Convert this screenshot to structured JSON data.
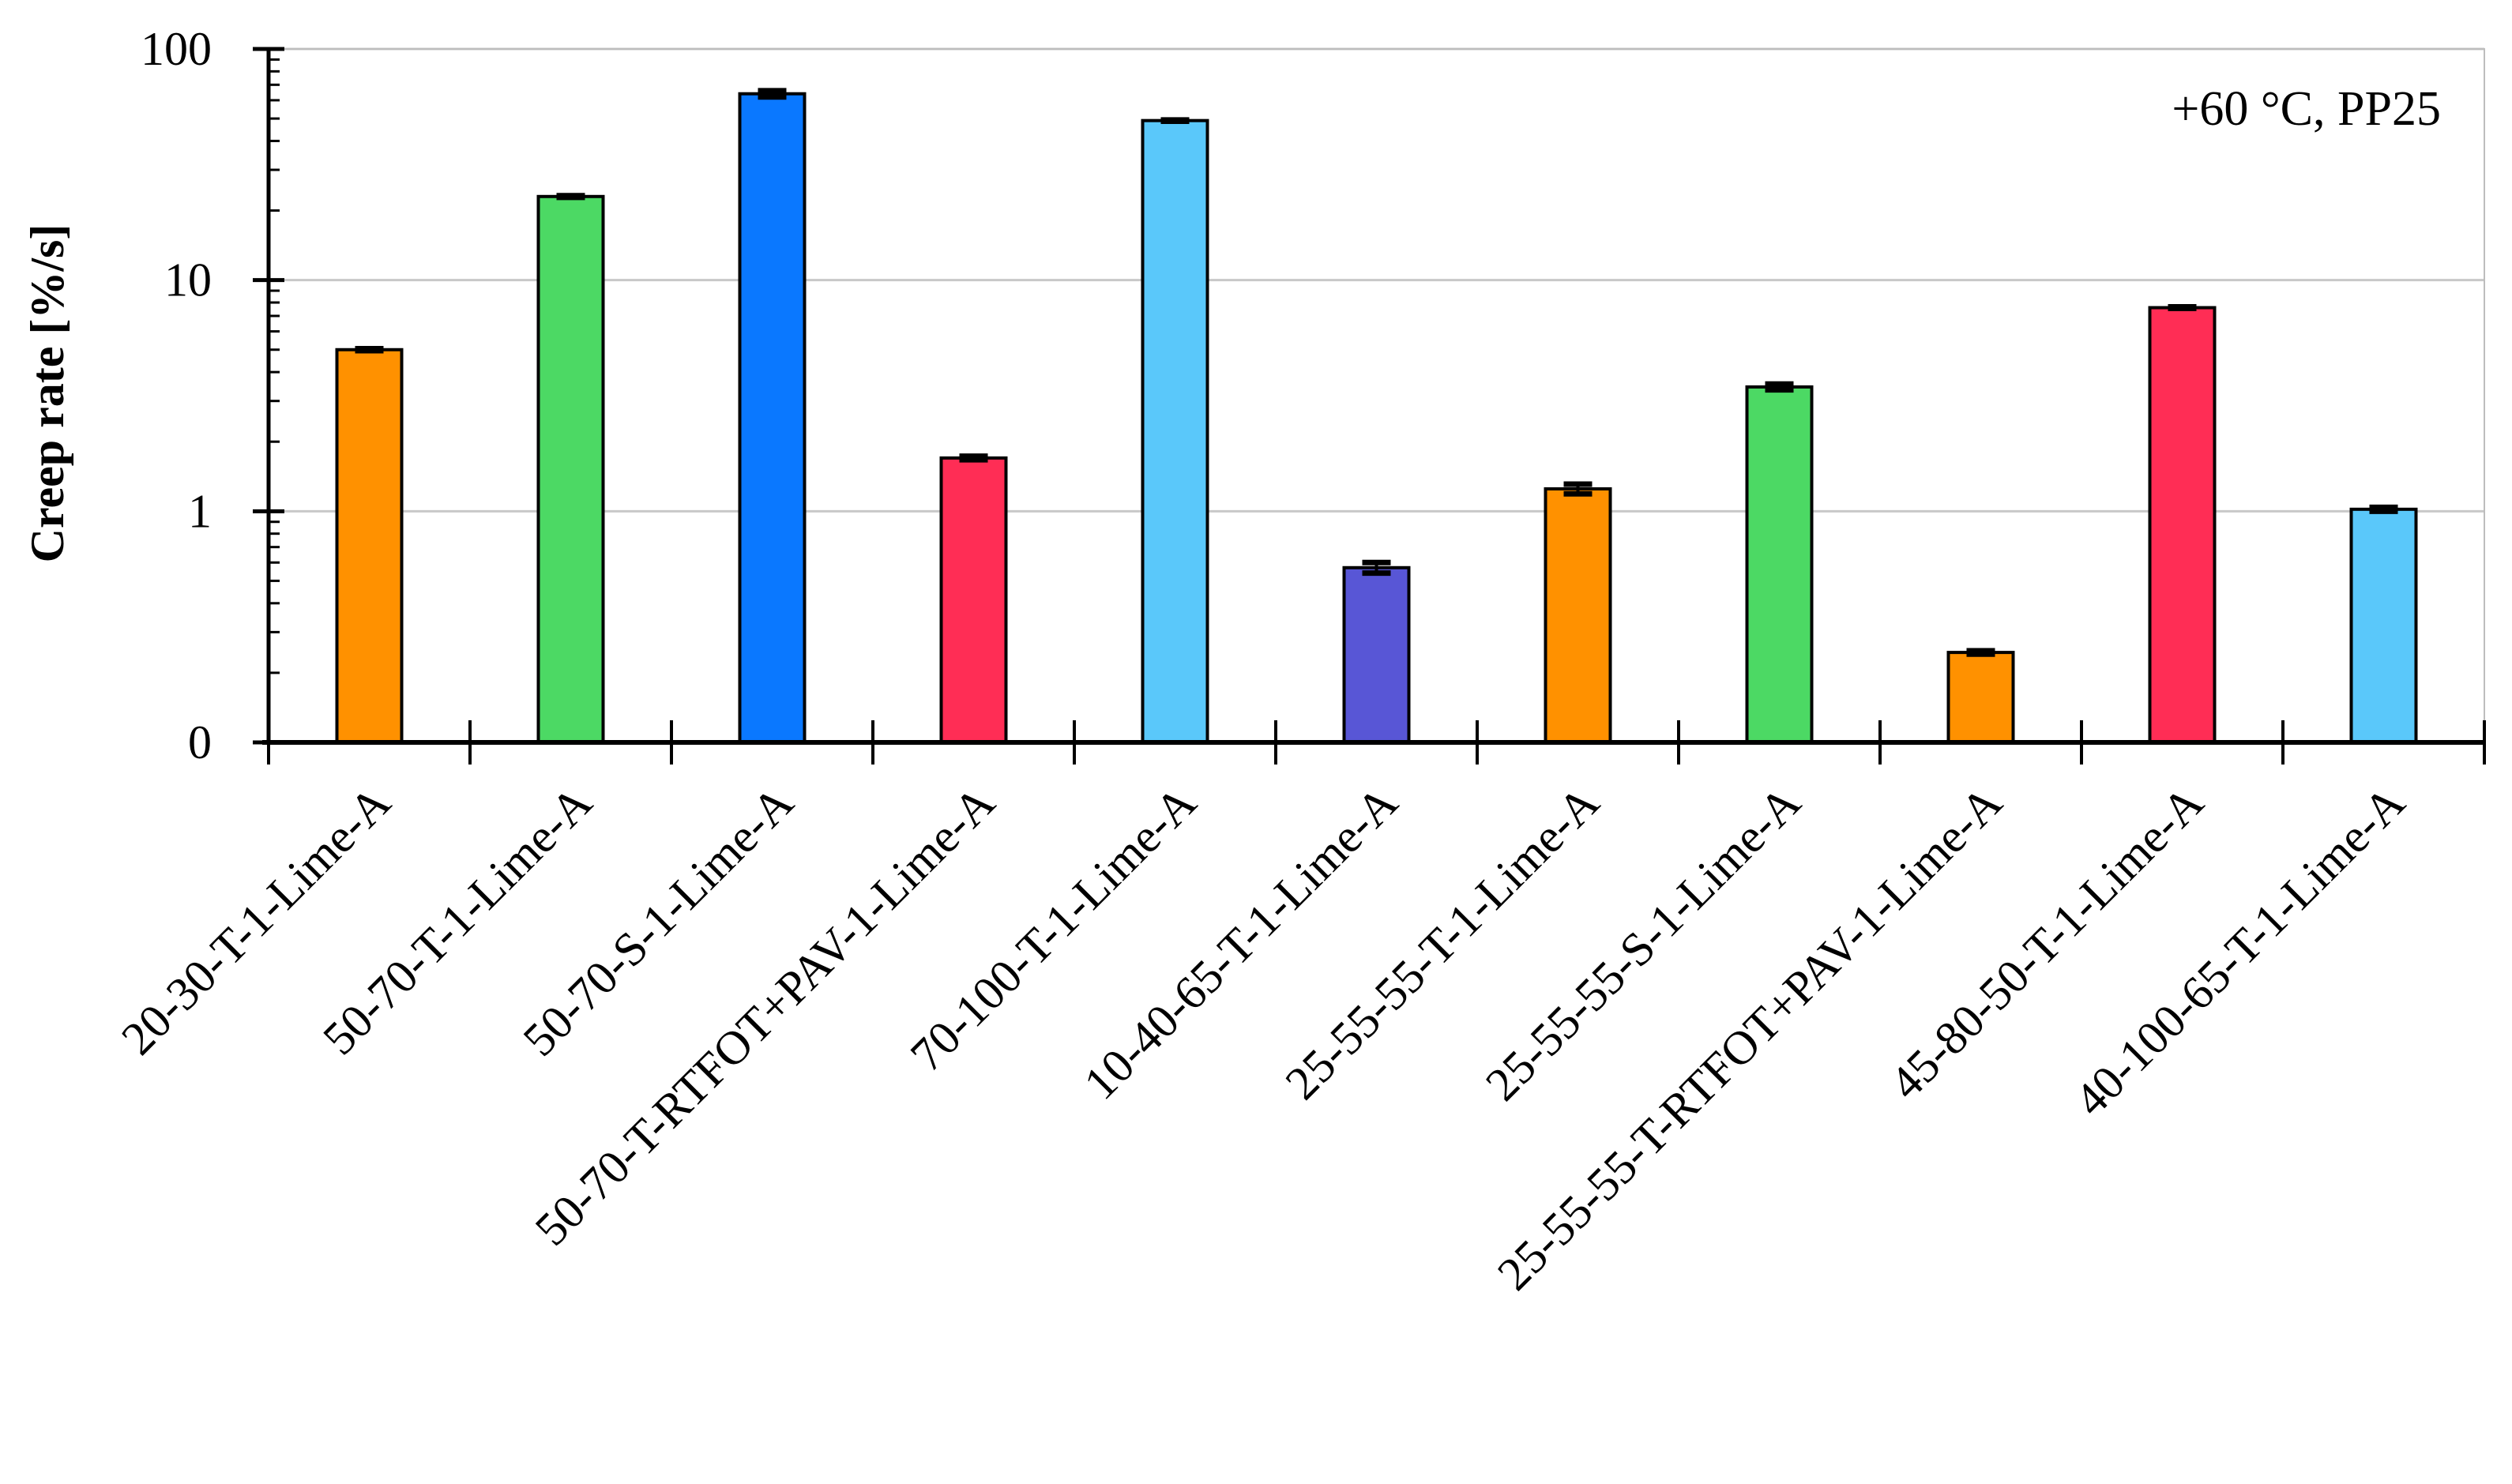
{
  "chart_data": {
    "type": "bar",
    "title": "",
    "xlabel": "",
    "ylabel": "Creep rate [%/s]",
    "y_scale": "log",
    "ylim": [
      0.1,
      100
    ],
    "y_ticks": [
      {
        "value": 0.1,
        "label": "0"
      },
      {
        "value": 1,
        "label": "1"
      },
      {
        "value": 10,
        "label": "10"
      },
      {
        "value": 100,
        "label": "100"
      }
    ],
    "grid": "horizontal major gridlines",
    "annotation": "+60 °C, PP25",
    "categories": [
      "20-30-T-1-Lime-A",
      "50-70-T-1-Lime-A",
      "50-70-S-1-Lime-A",
      "50-70-T-RTFOT+PAV-1-Lime-A",
      "70-100-T-1-Lime-A",
      "10-40-65-T-1-Lime-A",
      "25-55-55-T-1-Lime-A",
      "25-55-55-S-1-Lime-A",
      "25-55-55-T-RTFOT+PAV-1-Lime-A",
      "45-80-50-T-1-Lime-A",
      "40-100-65-T-1-Lime-A"
    ],
    "values": [
      5.0,
      23.0,
      64.0,
      1.7,
      49.0,
      0.57,
      1.25,
      3.45,
      0.245,
      7.6,
      1.02
    ],
    "errors": [
      0.05,
      0.2,
      2.0,
      0.03,
      0.3,
      0.03,
      0.06,
      0.1,
      0.004,
      0.06,
      0.02
    ],
    "colors": [
      "#FF9100",
      "#4CD964",
      "#0A78FF",
      "#FF2D55",
      "#5AC8FA",
      "#5856D6",
      "#FF9100",
      "#4CD964",
      "#FF9100",
      "#FF2D55",
      "#5AC8FA"
    ]
  }
}
